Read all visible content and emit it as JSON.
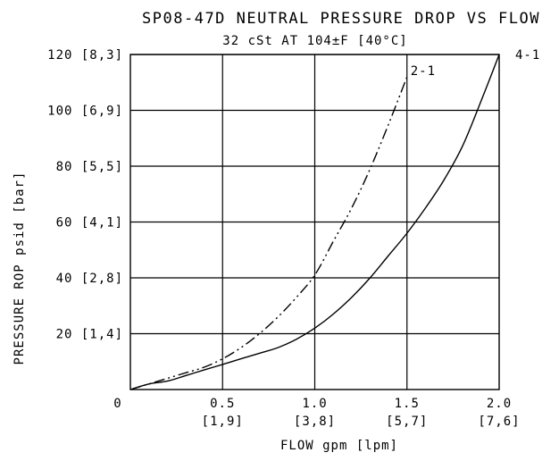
{
  "chart_data": {
    "type": "line",
    "title": "SP08-47D NEUTRAL PRESSURE DROP VS FLOW",
    "subtitle": "32 cSt AT 104±F [40°C]",
    "xlabel": "FLOW gpm [lpm]",
    "ylabel": "PRESSURE ROP psid [bar]",
    "xlim": [
      0,
      2.0
    ],
    "ylim": [
      0,
      120
    ],
    "grid": true,
    "x_ticks": [
      {
        "value": 0,
        "label": "0",
        "sublabel": ""
      },
      {
        "value": 0.5,
        "label": "0.5",
        "sublabel": "[1,9]"
      },
      {
        "value": 1.0,
        "label": "1.0",
        "sublabel": "[3,8]"
      },
      {
        "value": 1.5,
        "label": "1.5",
        "sublabel": "[5,7]"
      },
      {
        "value": 2.0,
        "label": "2.0",
        "sublabel": "[7,6]"
      }
    ],
    "y_ticks": [
      {
        "value": 20,
        "label": "20 [1,4]"
      },
      {
        "value": 40,
        "label": "40 [2,8]"
      },
      {
        "value": 60,
        "label": "60 [4,1]"
      },
      {
        "value": 80,
        "label": "80 [5,5]"
      },
      {
        "value": 100,
        "label": "100 [6,9]"
      },
      {
        "value": 120,
        "label": "120 [8,3]"
      }
    ],
    "series": [
      {
        "name": "2-1",
        "style": "dash-dot-dot",
        "x": [
          0,
          0.1,
          0.2,
          0.3,
          0.4,
          0.5,
          0.6,
          0.7,
          0.8,
          0.9,
          1.0,
          1.1,
          1.2,
          1.3,
          1.4,
          1.5
        ],
        "y": [
          0,
          2,
          4,
          6,
          8,
          11,
          15,
          20,
          26,
          33,
          41,
          53,
          65,
          79,
          95,
          112
        ]
      },
      {
        "name": "4-1",
        "style": "solid",
        "x": [
          0,
          0.1,
          0.2,
          0.3,
          0.4,
          0.5,
          0.6,
          0.7,
          0.8,
          0.9,
          1.0,
          1.1,
          1.2,
          1.3,
          1.4,
          1.5,
          1.6,
          1.7,
          1.8,
          1.9,
          2.0
        ],
        "y": [
          0,
          2,
          3,
          5,
          7,
          9,
          11,
          13,
          15,
          18,
          22,
          27,
          33,
          40,
          48,
          56,
          65,
          75,
          87,
          103,
          120
        ]
      }
    ]
  }
}
